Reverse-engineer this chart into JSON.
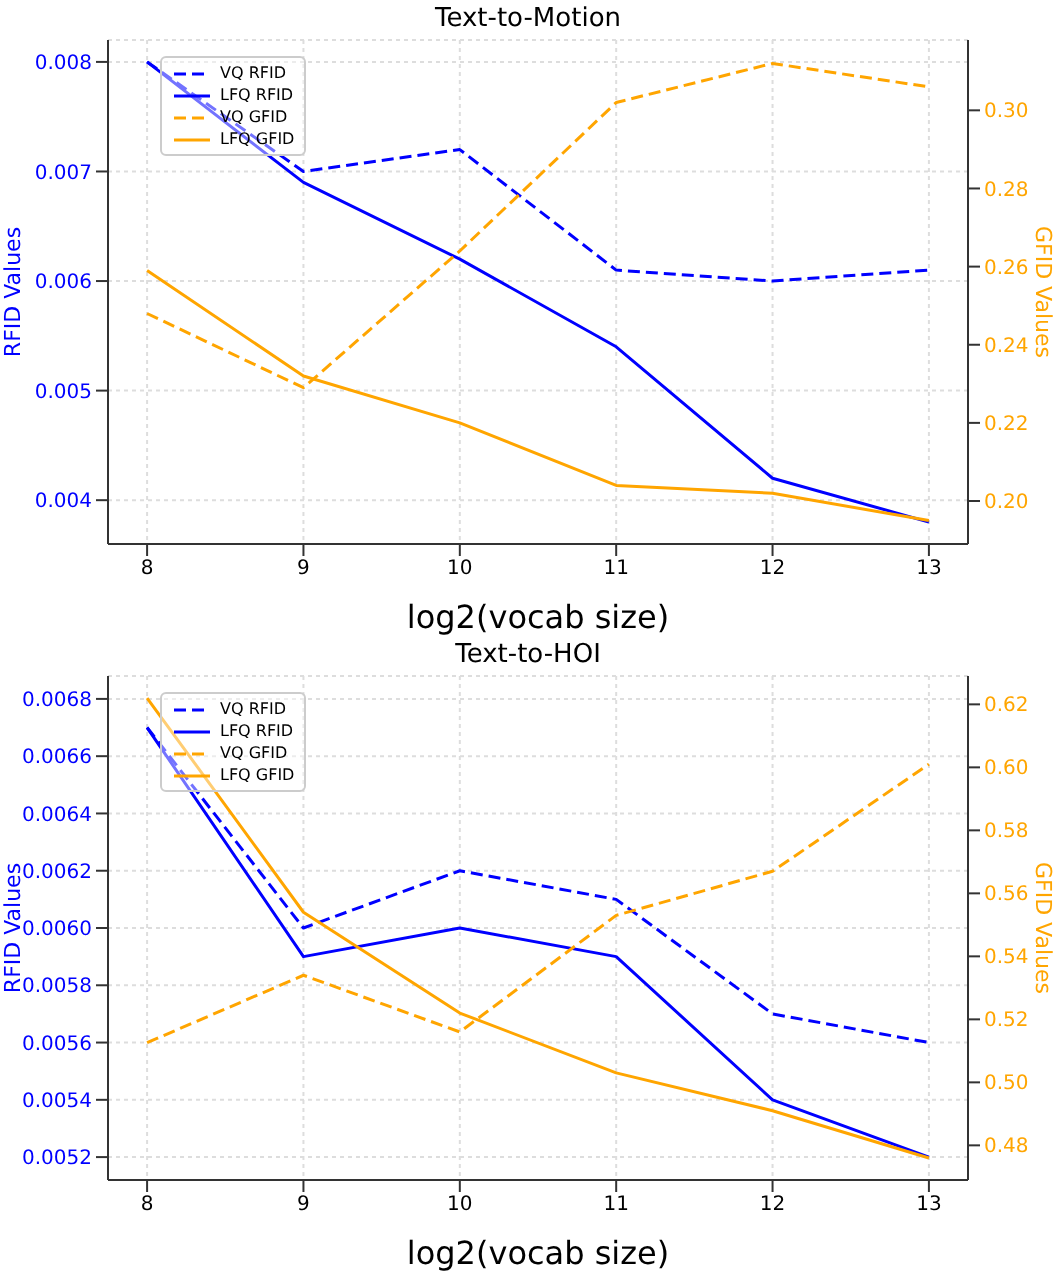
{
  "chart_data": [
    {
      "type": "line",
      "title": "Text-to-Motion",
      "xlabel": "log2(vocab size)",
      "ylabel": "RFID Values",
      "y2label": "GFID Values",
      "x": [
        8,
        9,
        10,
        11,
        12,
        13
      ],
      "xlim": [
        7.75,
        13.25
      ],
      "xticks": [
        8,
        9,
        10,
        11,
        12,
        13
      ],
      "ylim": [
        0.0036,
        0.0082
      ],
      "yticks": [
        0.004,
        0.005,
        0.006,
        0.007,
        0.008
      ],
      "y2lim": [
        0.189,
        0.318
      ],
      "y2ticks": [
        {
          "value": 0.2,
          "label": "0.20"
        },
        0.22,
        0.24,
        0.26,
        0.28,
        {
          "value": 0.3,
          "label": "0.30"
        }
      ],
      "grid": true,
      "legend": "top left",
      "series": [
        {
          "name": "VQ RFID",
          "color": "#0000ff",
          "line_style": "dashed",
          "values": [
            0.008,
            0.007,
            0.0072,
            0.0061,
            0.006,
            0.0061
          ]
        },
        {
          "name": "LFQ RFID",
          "color": "#0000ff",
          "line_style": "solid",
          "values": [
            0.008,
            0.0069,
            0.0062,
            0.0054,
            0.0042,
            0.0038
          ]
        },
        {
          "name": "VQ GFID",
          "color": "#ffa500",
          "line_style": "dashed",
          "axis": "y2",
          "values": [
            0.248,
            0.229,
            0.264,
            0.302,
            0.312,
            0.306
          ]
        },
        {
          "name": "LFQ GFID",
          "color": "#ffa500",
          "line_style": "solid",
          "axis": "y2",
          "values": [
            0.259,
            0.232,
            0.22,
            0.204,
            0.202,
            0.195
          ]
        }
      ]
    },
    {
      "type": "line",
      "title": "Text-to-HOI",
      "xlabel": "log2(vocab size)",
      "ylabel": "RFID Values",
      "y2label": "GFID Values",
      "x": [
        8,
        9,
        10,
        11,
        12,
        13
      ],
      "xlim": [
        7.75,
        13.25
      ],
      "xticks": [
        8,
        9,
        10,
        11,
        12,
        13
      ],
      "ylim": [
        0.00512,
        0.00688
      ],
      "yticks": [
        0.0052,
        0.0054,
        0.0056,
        0.0058,
        {
          "value": 0.006,
          "label": "0.0060"
        },
        0.0062,
        0.0064,
        0.0066,
        0.0068
      ],
      "y2lim": [
        0.469,
        0.629
      ],
      "y2ticks": [
        0.48,
        {
          "value": 0.5,
          "label": "0.50"
        },
        0.52,
        0.54,
        0.56,
        0.58,
        {
          "value": 0.6,
          "label": "0.60"
        },
        0.62
      ],
      "grid": true,
      "legend": "top left",
      "series": [
        {
          "name": "VQ RFID",
          "color": "#0000ff",
          "line_style": "dashed",
          "values": [
            0.0067,
            0.006,
            0.0062,
            0.0061,
            0.0057,
            0.0056
          ]
        },
        {
          "name": "LFQ RFID",
          "color": "#0000ff",
          "line_style": "solid",
          "values": [
            0.0067,
            0.0059,
            0.006,
            0.0059,
            0.0054,
            0.0052
          ]
        },
        {
          "name": "VQ GFID",
          "color": "#ffa500",
          "line_style": "dashed",
          "axis": "y2",
          "values": [
            0.5126,
            0.534,
            0.516,
            0.553,
            0.567,
            0.601
          ]
        },
        {
          "name": "LFQ GFID",
          "color": "#ffa500",
          "line_style": "solid",
          "axis": "y2",
          "values": [
            0.622,
            0.554,
            0.522,
            0.503,
            0.491,
            0.476
          ]
        }
      ]
    }
  ]
}
